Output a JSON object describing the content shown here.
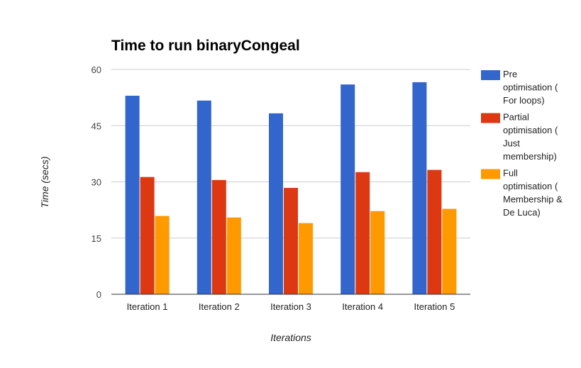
{
  "chart_data": {
    "type": "bar",
    "title": "Time to run binaryCongeal",
    "xlabel": "Iterations",
    "ylabel": "Time (secs)",
    "ylim": [
      0,
      60
    ],
    "yticks": [
      "0",
      "15",
      "30",
      "45",
      "60"
    ],
    "categories": [
      "Iteration 1",
      "Iteration 2",
      "Iteration 3",
      "Iteration 4",
      "Iteration 5"
    ],
    "grid": true,
    "legend_position": "right",
    "series": [
      {
        "name": "Pre optimisation ( For loops)",
        "legend_lines": [
          "Pre",
          "optimisation (",
          "For loops)"
        ],
        "color": "#3366cc",
        "values": [
          53.0,
          51.7,
          48.3,
          56.0,
          56.6
        ]
      },
      {
        "name": "Partial optimisation ( Just membership)",
        "legend_lines": [
          "Partial",
          "optimisation (",
          "Just",
          "membership)"
        ],
        "color": "#dc3912",
        "values": [
          31.3,
          30.5,
          28.4,
          32.6,
          33.2
        ]
      },
      {
        "name": "Full optimisation ( Membership & De Luca)",
        "legend_lines": [
          "Full",
          "optimisation (",
          "Membership &",
          "De Luca)"
        ],
        "color": "#ff9900",
        "values": [
          20.9,
          20.5,
          19.0,
          22.2,
          22.8
        ]
      }
    ]
  }
}
